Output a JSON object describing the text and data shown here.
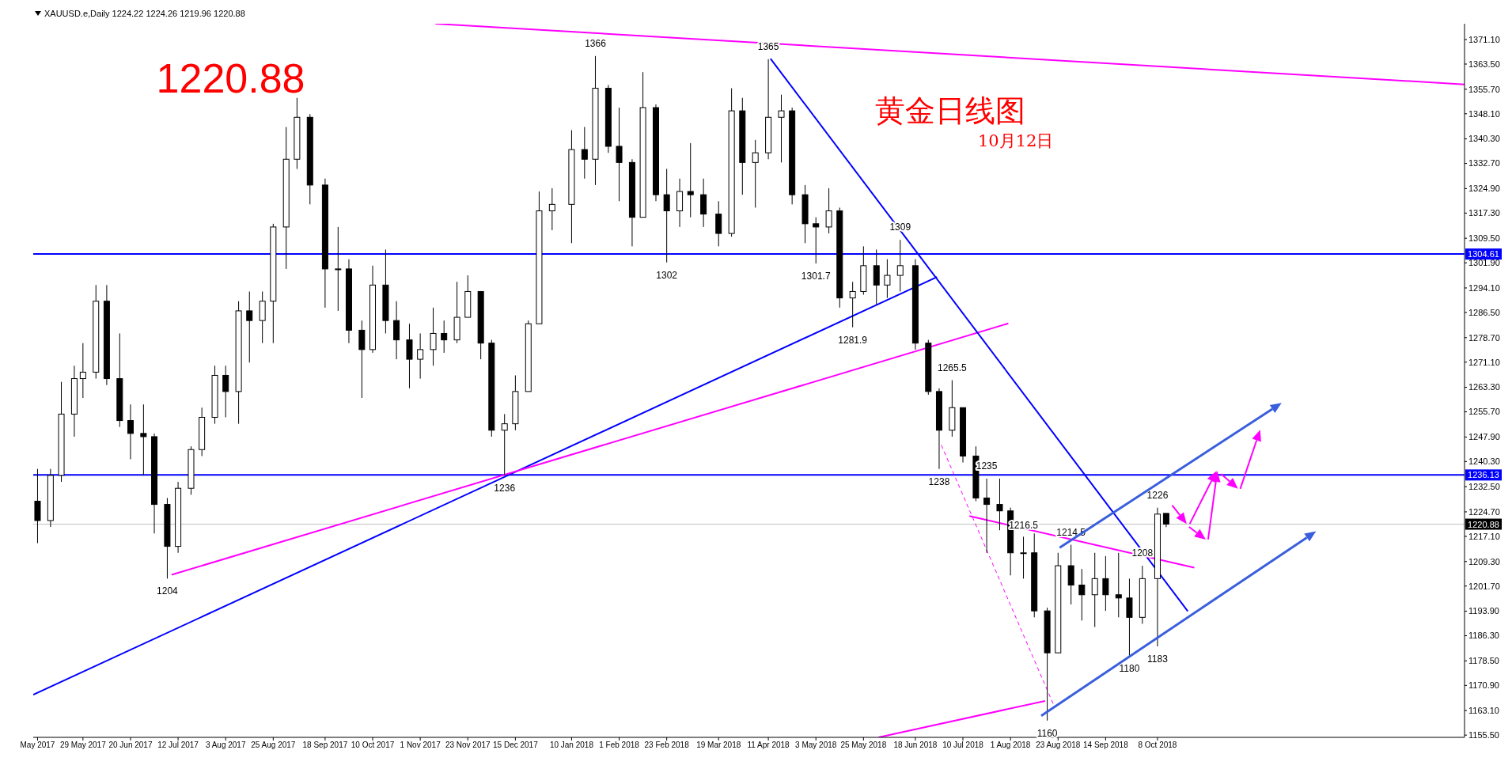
{
  "chart_data": {
    "type": "candlestick",
    "title": "XAUUSD.e,Daily 1224.22 1224.26 1219.96 1220.88",
    "x": [
      "2017-05-08",
      "2017-05-14",
      "2017-05-19",
      "2017-05-25",
      "2017-05-29",
      "2017-06-04",
      "2017-06-09",
      "2017-06-15",
      "2017-06-20",
      "2017-06-26",
      "2017-07-01",
      "2017-07-07",
      "2017-07-12",
      "2017-07-18",
      "2017-07-23",
      "2017-07-29",
      "2017-08-03",
      "2017-08-09",
      "2017-08-14",
      "2017-08-20",
      "2017-08-25",
      "2017-08-31",
      "2017-09-05",
      "2017-09-11",
      "2017-09-18",
      "2017-09-24",
      "2017-09-29",
      "2017-10-05",
      "2017-10-10",
      "2017-10-16",
      "2017-10-21",
      "2017-10-27",
      "2017-11-01",
      "2017-11-07",
      "2017-11-12",
      "2017-11-18",
      "2017-11-23",
      "2017-11-29",
      "2017-12-04",
      "2017-12-10",
      "2017-12-15",
      "2017-12-21",
      "2017-12-26",
      "2018-01-01",
      "2018-01-10",
      "2018-01-16",
      "2018-01-21",
      "2018-01-27",
      "2018-02-01",
      "2018-02-07",
      "2018-02-12",
      "2018-02-18",
      "2018-02-23",
      "2018-03-01",
      "2018-03-06",
      "2018-03-12",
      "2018-03-19",
      "2018-03-25",
      "2018-03-30",
      "2018-04-05",
      "2018-04-11",
      "2018-04-17",
      "2018-04-22",
      "2018-04-28",
      "2018-05-03",
      "2018-05-09",
      "2018-05-14",
      "2018-05-20",
      "2018-05-25",
      "2018-05-31",
      "2018-06-05",
      "2018-06-11",
      "2018-06-18",
      "2018-06-24",
      "2018-06-29",
      "2018-07-05",
      "2018-07-10",
      "2018-07-16",
      "2018-07-21",
      "2018-07-27",
      "2018-08-01",
      "2018-08-07",
      "2018-08-12",
      "2018-08-18",
      "2018-08-23",
      "2018-08-29",
      "2018-09-03",
      "2018-09-09",
      "2018-09-14",
      "2018-09-20",
      "2018-09-25",
      "2018-10-01",
      "2018-10-08",
      "2018-10-12"
    ],
    "ohlc": [
      [
        1228,
        1238,
        1215,
        1222
      ],
      [
        1222,
        1238,
        1220,
        1236
      ],
      [
        1236,
        1265,
        1234,
        1255
      ],
      [
        1255,
        1270,
        1248,
        1266
      ],
      [
        1266,
        1277,
        1260,
        1268
      ],
      [
        1268,
        1295,
        1266,
        1290
      ],
      [
        1290,
        1295,
        1264,
        1266
      ],
      [
        1266,
        1280,
        1251,
        1253
      ],
      [
        1253,
        1258,
        1241,
        1249
      ],
      [
        1249,
        1258,
        1236,
        1248
      ],
      [
        1248,
        1249,
        1218,
        1227
      ],
      [
        1227,
        1229,
        1204,
        1214
      ],
      [
        1214,
        1234,
        1212,
        1232
      ],
      [
        1232,
        1245,
        1230,
        1244
      ],
      [
        1244,
        1257,
        1242,
        1254
      ],
      [
        1254,
        1270,
        1252,
        1267
      ],
      [
        1267,
        1270,
        1254,
        1262
      ],
      [
        1262,
        1290,
        1252,
        1287
      ],
      [
        1287,
        1293,
        1271,
        1284
      ],
      [
        1284,
        1293,
        1277,
        1290
      ],
      [
        1290,
        1314,
        1277,
        1313
      ],
      [
        1313,
        1344,
        1300,
        1334
      ],
      [
        1334,
        1353,
        1331,
        1347
      ],
      [
        1347,
        1348,
        1320,
        1326
      ],
      [
        1326,
        1328,
        1288,
        1300
      ],
      [
        1300,
        1313,
        1287,
        1300
      ],
      [
        1300,
        1303,
        1277,
        1281
      ],
      [
        1281,
        1284,
        1260,
        1275
      ],
      [
        1275,
        1301,
        1274,
        1295
      ],
      [
        1295,
        1306,
        1280,
        1284
      ],
      [
        1284,
        1290,
        1272,
        1278
      ],
      [
        1278,
        1283,
        1263,
        1272
      ],
      [
        1272,
        1280,
        1266,
        1275
      ],
      [
        1275,
        1288,
        1270,
        1280
      ],
      [
        1280,
        1284,
        1274,
        1278
      ],
      [
        1278,
        1296,
        1277,
        1285
      ],
      [
        1285,
        1298,
        1285,
        1293
      ],
      [
        1293,
        1293,
        1272,
        1277
      ],
      [
        1277,
        1278,
        1248,
        1250
      ],
      [
        1250,
        1255,
        1236,
        1252
      ],
      [
        1252,
        1267,
        1250,
        1262
      ],
      [
        1262,
        1284,
        1262,
        1283
      ],
      [
        1283,
        1324,
        1283,
        1318
      ],
      [
        1318,
        1325,
        1312,
        1320
      ],
      [
        1320,
        1343,
        1308,
        1337
      ],
      [
        1337,
        1344,
        1328,
        1334
      ],
      [
        1334,
        1366,
        1326,
        1356
      ],
      [
        1356,
        1357,
        1336,
        1338
      ],
      [
        1338,
        1350,
        1321,
        1333
      ],
      [
        1333,
        1334,
        1307,
        1316
      ],
      [
        1316,
        1361,
        1316,
        1350
      ],
      [
        1350,
        1351,
        1321,
        1323
      ],
      [
        1323,
        1331,
        1302,
        1318
      ],
      [
        1318,
        1328,
        1313,
        1324
      ],
      [
        1324,
        1339,
        1316,
        1323
      ],
      [
        1323,
        1328,
        1313,
        1317
      ],
      [
        1317,
        1321,
        1307,
        1311
      ],
      [
        1311,
        1356,
        1310,
        1349
      ],
      [
        1349,
        1353,
        1323,
        1333
      ],
      [
        1333,
        1340,
        1319,
        1336
      ],
      [
        1336,
        1365,
        1334,
        1347
      ],
      [
        1347,
        1354,
        1333,
        1349
      ],
      [
        1349,
        1350,
        1320,
        1323
      ],
      [
        1323,
        1326,
        1308,
        1314
      ],
      [
        1314,
        1316,
        1301.7,
        1313
      ],
      [
        1313,
        1325,
        1311,
        1318
      ],
      [
        1318,
        1319,
        1288,
        1291
      ],
      [
        1291,
        1296,
        1281.9,
        1293
      ],
      [
        1293,
        1307,
        1292,
        1301
      ],
      [
        1301,
        1306,
        1289,
        1295
      ],
      [
        1295,
        1303,
        1291,
        1298
      ],
      [
        1298,
        1309,
        1293,
        1301
      ],
      [
        1301,
        1303,
        1275,
        1277
      ],
      [
        1277,
        1278,
        1261,
        1262
      ],
      [
        1262,
        1263,
        1238,
        1250
      ],
      [
        1250,
        1265.5,
        1248,
        1257
      ],
      [
        1257,
        1257,
        1240,
        1242
      ],
      [
        1242,
        1245,
        1228,
        1229
      ],
      [
        1229,
        1235,
        1212,
        1227
      ],
      [
        1227,
        1235,
        1219,
        1225
      ],
      [
        1225,
        1226,
        1205,
        1212
      ],
      [
        1212,
        1217,
        1204,
        1212
      ],
      [
        1212,
        1218,
        1192,
        1194
      ],
      [
        1194,
        1195,
        1160,
        1181
      ],
      [
        1181,
        1212,
        1181,
        1208
      ],
      [
        1208,
        1214.5,
        1196,
        1202
      ],
      [
        1202,
        1207,
        1191,
        1199
      ],
      [
        1199,
        1212,
        1189,
        1204
      ],
      [
        1204,
        1211,
        1194,
        1199
      ],
      [
        1199,
        1212,
        1192,
        1198
      ],
      [
        1198,
        1204,
        1180,
        1192
      ],
      [
        1192,
        1208,
        1190,
        1204
      ],
      [
        1204,
        1226,
        1183,
        1224
      ],
      [
        1224.22,
        1224.26,
        1219.96,
        1220.88
      ]
    ],
    "series": [
      {
        "type": "line",
        "color": "#ff00ff",
        "x": [
          "2017-11-08",
          "2019-02-27"
        ],
        "values": [
          1376,
          1357.2
        ]
      },
      {
        "type": "line",
        "color": "#0000ff",
        "x": [
          "2017-05-06",
          "2018-06-28"
        ],
        "values": [
          1168,
          1297.5
        ]
      },
      {
        "type": "line",
        "color": "#ff00ff",
        "x": [
          "2017-07-09",
          "2018-07-31"
        ],
        "values": [
          1205.2,
          1283.1
        ]
      },
      {
        "type": "line",
        "color": "#0000ff",
        "x": [
          "2018-04-12",
          "2018-10-22"
        ],
        "values": [
          1365.2,
          1193.9
        ]
      },
      {
        "type": "line",
        "color": "#ff00ff",
        "x": [
          "2018-07-13",
          "2018-10-25"
        ],
        "values": [
          1223.4,
          1207.4
        ]
      },
      {
        "type": "line",
        "color": "#ff00ff",
        "x": [
          "2018-06-01",
          "2018-08-17"
        ],
        "values": [
          1154.8,
          1166.1
        ]
      },
      {
        "type": "line",
        "color": "#ff00ff",
        "line_style": "dashed",
        "x": [
          "2018-06-30",
          "2018-08-21"
        ],
        "values": [
          1245.4,
          1164.8
        ]
      }
    ],
    "ref_lines": [
      {
        "axis": "y",
        "value": 1304.61,
        "label": "1304.61",
        "color": "#0000ff"
      },
      {
        "axis": "y",
        "value": 1236.13,
        "label": "1236.13",
        "color": "#0000ff"
      },
      {
        "axis": "y",
        "value": 1220.88,
        "label": "1220.88",
        "color": "#c0c0c0"
      }
    ],
    "annotations": [
      "1220.88",
      "黄金日线图",
      "10月12日",
      {
        "text": "1204",
        "x": "2017-07-07",
        "y": 1204
      },
      {
        "text": "1236",
        "x": "2017-12-10",
        "y": 1236
      },
      {
        "text": "1366",
        "x": "2018-01-21",
        "y": 1366
      },
      {
        "text": "1302",
        "x": "2018-02-23",
        "y": 1302
      },
      {
        "text": "1365",
        "x": "2018-04-11",
        "y": 1365
      },
      {
        "text": "1301.7",
        "x": "2018-05-03",
        "y": 1301.7
      },
      {
        "text": "1281.9",
        "x": "2018-05-20",
        "y": 1281.9
      },
      {
        "text": "1309",
        "x": "2018-06-11",
        "y": 1309
      },
      {
        "text": "1238",
        "x": "2018-06-29",
        "y": 1238
      },
      {
        "text": "1265.5",
        "x": "2018-07-05",
        "y": 1265.5
      },
      {
        "text": "1235",
        "x": "2018-07-21",
        "y": 1235
      },
      {
        "text": "1216.5",
        "x": "2018-08-07",
        "y": 1216.5
      },
      {
        "text": "1160",
        "x": "2018-08-18",
        "y": 1160
      },
      {
        "text": "1214.5",
        "x": "2018-08-29",
        "y": 1214.5
      },
      {
        "text": "1180",
        "x": "2018-09-25",
        "y": 1180
      },
      {
        "text": "1208",
        "x": "2018-10-01",
        "y": 1208
      },
      {
        "text": "1183",
        "x": "2018-10-08",
        "y": 1183
      },
      {
        "text": "1226",
        "x": "2018-10-08",
        "y": 1226
      }
    ],
    "xlim": [
      "2017-05-06",
      "2019-02-27"
    ],
    "xticks": [
      {
        "value": "2017-05-08",
        "label": "May 2017"
      },
      {
        "value": "2017-05-29",
        "label": "29 May 2017"
      },
      {
        "value": "2017-06-20",
        "label": "20 Jun 2017"
      },
      {
        "value": "2017-07-12",
        "label": "12 Jul 2017"
      },
      {
        "value": "2017-08-03",
        "label": "3 Aug 2017"
      },
      {
        "value": "2017-08-25",
        "label": "25 Aug 2017"
      },
      {
        "value": "2017-09-18",
        "label": "18 Sep 2017"
      },
      {
        "value": "2017-10-10",
        "label": "10 Oct 2017"
      },
      {
        "value": "2017-11-01",
        "label": "1 Nov 2017"
      },
      {
        "value": "2017-11-23",
        "label": "23 Nov 2017"
      },
      {
        "value": "2017-12-15",
        "label": "15 Dec 2017"
      },
      {
        "value": "2018-01-10",
        "label": "10 Jan 2018"
      },
      {
        "value": "2018-02-01",
        "label": "1 Feb 2018"
      },
      {
        "value": "2018-02-23",
        "label": "23 Feb 2018"
      },
      {
        "value": "2018-03-19",
        "label": "19 Mar 2018"
      },
      {
        "value": "2018-04-11",
        "label": "11 Apr 2018"
      },
      {
        "value": "2018-05-03",
        "label": "3 May 2018"
      },
      {
        "value": "2018-05-25",
        "label": "25 May 2018"
      },
      {
        "value": "2018-06-18",
        "label": "18 Jun 2018"
      },
      {
        "value": "2018-07-10",
        "label": "10 Jul 2018"
      },
      {
        "value": "2018-08-01",
        "label": "1 Aug 2018"
      },
      {
        "value": "2018-08-23",
        "label": "23 Aug 2018"
      },
      {
        "value": "2018-09-14",
        "label": "14 Sep 2018"
      },
      {
        "value": "2018-10-08",
        "label": "8 Oct 2018"
      }
    ],
    "ylim": [
      1154.8,
      1376
    ],
    "yticks": [
      {
        "value": 1371.1,
        "label": "1371.10"
      },
      {
        "value": 1363.5,
        "label": "1363.50"
      },
      {
        "value": 1355.7,
        "label": "1355.70"
      },
      {
        "value": 1348.1,
        "label": "1348.10"
      },
      {
        "value": 1340.3,
        "label": "1340.30"
      },
      {
        "value": 1332.7,
        "label": "1332.70"
      },
      {
        "value": 1324.9,
        "label": "1324.90"
      },
      {
        "value": 1317.3,
        "label": "1317.30"
      },
      {
        "value": 1309.5,
        "label": "1309.50"
      },
      {
        "value": 1301.9,
        "label": "1301.90"
      },
      {
        "value": 1294.1,
        "label": "1294.10"
      },
      {
        "value": 1286.5,
        "label": "1286.50"
      },
      {
        "value": 1278.7,
        "label": "1278.70"
      },
      {
        "value": 1271.1,
        "label": "1271.10"
      },
      {
        "value": 1263.3,
        "label": "1263.30"
      },
      {
        "value": 1255.7,
        "label": "1255.70"
      },
      {
        "value": 1247.9,
        "label": "1247.90"
      },
      {
        "value": 1240.3,
        "label": "1240.30"
      },
      {
        "value": 1232.5,
        "label": "1232.50"
      },
      {
        "value": 1224.7,
        "label": "1224.70"
      },
      {
        "value": 1217.1,
        "label": "1217.10"
      },
      {
        "value": 1209.3,
        "label": "1209.30"
      },
      {
        "value": 1201.7,
        "label": "1201.70"
      },
      {
        "value": 1193.9,
        "label": "1193.90"
      },
      {
        "value": 1186.3,
        "label": "1186.30"
      },
      {
        "value": 1178.5,
        "label": "1178.50"
      },
      {
        "value": 1170.9,
        "label": "1170.90"
      },
      {
        "value": 1163.1,
        "label": "1163.10"
      },
      {
        "value": 1155.5,
        "label": "1155.50"
      }
    ]
  }
}
